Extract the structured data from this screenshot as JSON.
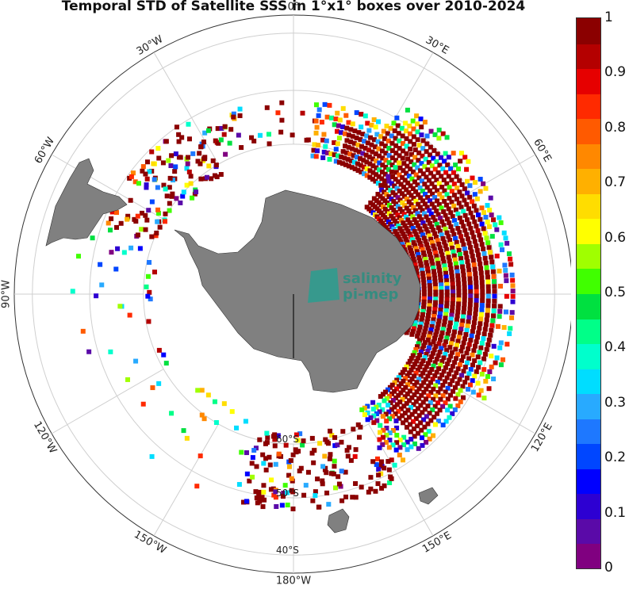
{
  "title": "Temporal STD of Satellite SSS in 1°x1° boxes over 2010-2024",
  "logo": {
    "line1": "salinity",
    "line2": "pi-mep",
    "color": "#1e8c7e"
  },
  "map": {
    "projection": "south-polar-stereographic",
    "land_color": "#808080",
    "grid_color": "#cfcfcf",
    "longitude_labels": [
      {
        "lon": 0,
        "text": "0°"
      },
      {
        "lon": 30,
        "text": "30°E"
      },
      {
        "lon": 60,
        "text": "60°E"
      },
      {
        "lon": 90,
        "text": "90°E"
      },
      {
        "lon": 120,
        "text": "120°E"
      },
      {
        "lon": 150,
        "text": "150°E"
      },
      {
        "lon": 180,
        "text": "180°W"
      },
      {
        "lon": -150,
        "text": "150°W"
      },
      {
        "lon": -120,
        "text": "120°W"
      },
      {
        "lon": -90,
        "text": "90°W"
      },
      {
        "lon": -60,
        "text": "60°W"
      },
      {
        "lon": -30,
        "text": "30°W"
      }
    ],
    "latitude_labels": [
      {
        "lat": -60,
        "text": "60°S"
      },
      {
        "lat": -50,
        "text": "50°S"
      },
      {
        "lat": -40,
        "text": "40°S"
      }
    ]
  },
  "colorbar": {
    "min": 0,
    "max": 1,
    "ticks": [
      "0",
      "0.1",
      "0.2",
      "0.3",
      "0.4",
      "0.5",
      "0.6",
      "0.7",
      "0.8",
      "0.9",
      "1"
    ],
    "colors": [
      "#800080",
      "#5a0aa8",
      "#2d00d2",
      "#0000ff",
      "#0046ff",
      "#1e78ff",
      "#28aaff",
      "#00ddff",
      "#00ffcc",
      "#00ff88",
      "#00e040",
      "#40ff00",
      "#a0ff00",
      "#ffff00",
      "#ffdd00",
      "#ffb000",
      "#ff8800",
      "#ff5a00",
      "#ff2a00",
      "#e60000",
      "#b40000",
      "#8b0000"
    ]
  }
}
